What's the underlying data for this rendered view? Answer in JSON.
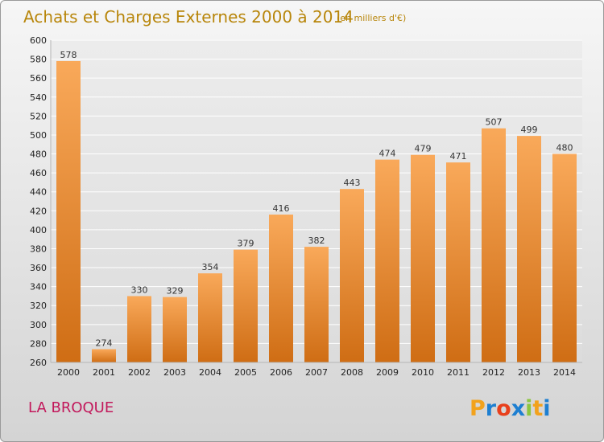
{
  "chart_data": {
    "type": "bar",
    "title": "Achats et Charges Externes 2000 à 2014",
    "subtitle": "(en milliers d'€)",
    "categories": [
      "2000",
      "2001",
      "2002",
      "2003",
      "2004",
      "2005",
      "2006",
      "2007",
      "2008",
      "2009",
      "2010",
      "2011",
      "2012",
      "2013",
      "2014"
    ],
    "values": [
      578,
      274,
      330,
      329,
      354,
      379,
      416,
      382,
      443,
      474,
      479,
      471,
      507,
      499,
      480
    ],
    "ylim": [
      260,
      600
    ],
    "yticks": [
      260,
      280,
      300,
      320,
      340,
      360,
      380,
      400,
      420,
      440,
      460,
      480,
      500,
      520,
      540,
      560,
      580,
      600
    ],
    "grid": true,
    "bar_color": "#f28c28"
  },
  "commune": "LA BROQUE",
  "logo": {
    "letters": [
      "P",
      "r",
      "o",
      "x",
      "i",
      "t",
      "i"
    ],
    "colors": [
      "#f2a21c",
      "#1d7fd1",
      "#e8401c",
      "#1d7fd1",
      "#8cc63f",
      "#f2a21c",
      "#1d7fd1"
    ]
  }
}
